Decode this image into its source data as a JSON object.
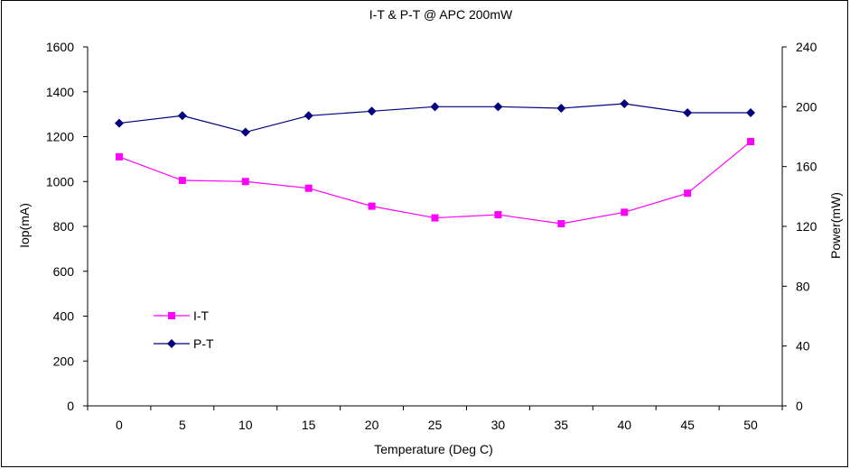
{
  "chart_data": {
    "type": "line",
    "title": "I-T & P-T @ APC 200mW",
    "xlabel": "Temperature (Deg C)",
    "ylabel_left": "Iop(mA)",
    "ylabel_right": "Power(mW)",
    "categories": [
      "0",
      "5",
      "10",
      "15",
      "20",
      "25",
      "30",
      "35",
      "40",
      "45",
      "50"
    ],
    "y_left": {
      "min": 0,
      "max": 1600,
      "ticks": [
        "0",
        "200",
        "400",
        "600",
        "800",
        "1000",
        "1200",
        "1400",
        "1600"
      ]
    },
    "y_right": {
      "min": 0,
      "max": 240,
      "ticks": [
        "0",
        "40",
        "80",
        "120",
        "160",
        "200",
        "240"
      ]
    },
    "grid": false,
    "legend_position": "bottom-left",
    "series": [
      {
        "name": "I-T",
        "axis": "left",
        "marker": "square",
        "color": "#FF00FF",
        "values": [
          1110,
          1005,
          1000,
          970,
          890,
          838,
          852,
          812,
          863,
          948,
          1178
        ]
      },
      {
        "name": "P-T",
        "axis": "right",
        "marker": "diamond",
        "color": "#000080",
        "values": [
          189,
          194,
          183,
          194,
          197,
          200,
          200,
          199,
          202,
          196,
          196
        ]
      }
    ]
  }
}
